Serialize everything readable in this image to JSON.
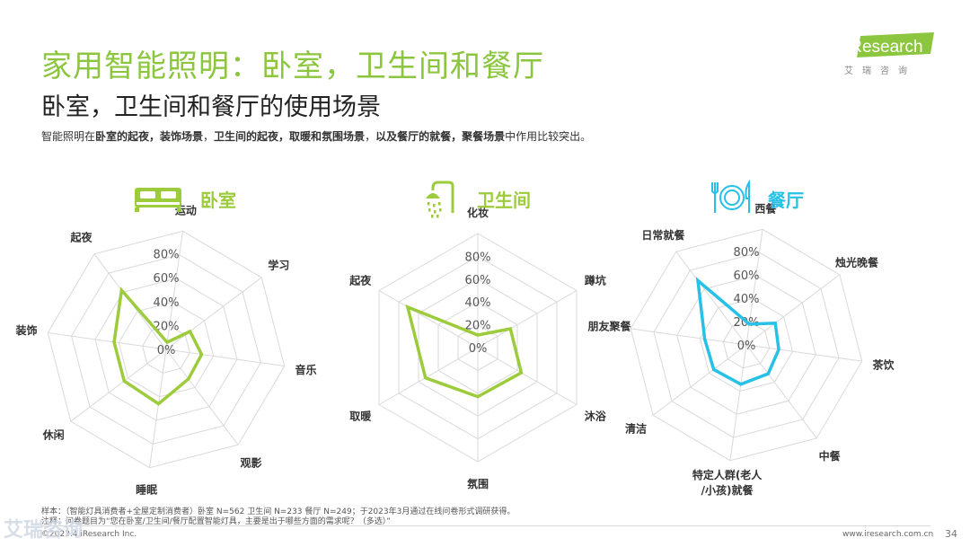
{
  "header": {
    "title": "家用智能照明：卧室，卫生间和餐厅",
    "subtitle": "卧室，卫生间和餐厅的使用场景",
    "summary_parts": [
      {
        "text": "智能照明在",
        "bold": false
      },
      {
        "text": "卧室的起夜，装饰场景",
        "bold": true
      },
      {
        "text": "，",
        "bold": false
      },
      {
        "text": "卫生间的起夜，取暖和氛围场景",
        "bold": true
      },
      {
        "text": "，",
        "bold": false
      },
      {
        "text": "以及餐厅的就餐，聚餐场景",
        "bold": true
      },
      {
        "text": "中作用比较突出。",
        "bold": false
      }
    ]
  },
  "logo": {
    "brand": "iResearch",
    "sub": "艾瑞咨询"
  },
  "colors": {
    "title_green": "#8cc63f",
    "green_series": "#9ccb3b",
    "blue_series": "#27c0e6",
    "grid": "#d9d9d9"
  },
  "chart_data": [
    {
      "type": "radar",
      "title": "卧室",
      "icon": "bed-icon",
      "axes": [
        "运动",
        "学习",
        "音乐",
        "观影",
        "睡眠",
        "休闲",
        "装饰",
        "起夜"
      ],
      "values": [
        6,
        25,
        30,
        31,
        46,
        44,
        44,
        62
      ],
      "scale_labels": [
        "0%",
        "20%",
        "40%",
        "60%",
        "80%"
      ],
      "rlim": [
        0,
        100
      ],
      "color": "#9ccb3b"
    },
    {
      "type": "radar",
      "title": "卫生间",
      "icon": "shower-icon",
      "axes": [
        "化妆",
        "蹲坑",
        "沐浴",
        "氛围",
        "取暖",
        "起夜"
      ],
      "values": [
        11,
        33,
        44,
        43,
        53,
        71
      ],
      "scale_labels": [
        "0%",
        "20%",
        "40%",
        "60%",
        "80%"
      ],
      "rlim": [
        0,
        100
      ],
      "color": "#9ccb3b"
    },
    {
      "type": "radar",
      "title": "餐厅",
      "icon": "dining-icon",
      "axes": [
        "西餐",
        "烛光晚餐",
        "茶饮",
        "中餐",
        "特定人群(老人/小孩)就餐",
        "清洁",
        "朋友聚餐",
        "日常就餐"
      ],
      "values": [
        18,
        31,
        28,
        31,
        34,
        35,
        36,
        69
      ],
      "scale_labels": [
        "0%",
        "20%",
        "40%",
        "60%",
        "80%"
      ],
      "rlim": [
        0,
        100
      ],
      "color": "#27c0e6"
    }
  ],
  "footer": {
    "sample": "样本：（智能灯具消费者+全屋定制消费者）卧室 N=562 卫生间 N=233 餐厅 N=249；于2023年3月通过在线问卷形式调研获得。",
    "note": "注释：问卷题目为“您在卧室/卫生间/餐厅配置智能灯具，主要是出于哪些方面的需求呢？（多选）”",
    "copyright": "©2023.4 iResearch Inc.",
    "site": "www.iresearch.com.cn",
    "page": "34",
    "watermark": "艾瑞咨询"
  }
}
